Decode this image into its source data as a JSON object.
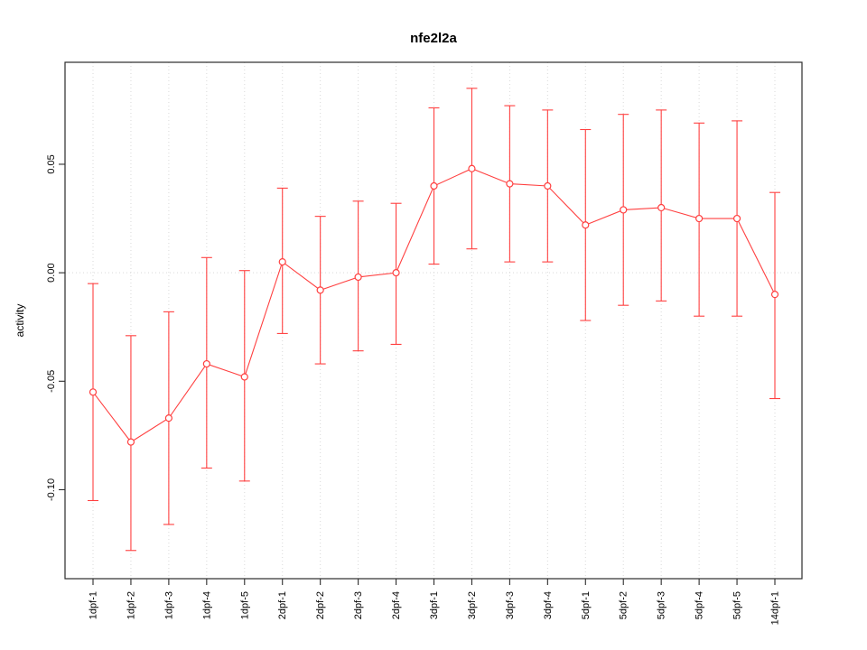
{
  "window": {
    "background": "#ffffff"
  },
  "chart_data": {
    "type": "line",
    "title": "nfe2l2a",
    "xlabel": "",
    "ylabel": "activity",
    "categories": [
      "1dpf-1",
      "1dpf-2",
      "1dpf-3",
      "1dpf-4",
      "1dpf-5",
      "2dpf-1",
      "2dpf-2",
      "2dpf-3",
      "2dpf-4",
      "3dpf-1",
      "3dpf-2",
      "3dpf-3",
      "3dpf-4",
      "5dpf-1",
      "5dpf-2",
      "5dpf-3",
      "5dpf-4",
      "5dpf-5",
      "14dpf-1"
    ],
    "series": [
      {
        "name": "activity",
        "values": [
          -0.055,
          -0.078,
          -0.067,
          -0.042,
          -0.048,
          0.005,
          -0.008,
          -0.002,
          0.0,
          0.04,
          0.048,
          0.041,
          0.04,
          0.022,
          0.029,
          0.03,
          0.025,
          0.025,
          -0.01
        ]
      }
    ],
    "error_upper": [
      -0.005,
      -0.029,
      -0.018,
      0.007,
      0.001,
      0.039,
      0.026,
      0.033,
      0.032,
      0.076,
      0.085,
      0.077,
      0.075,
      0.066,
      0.073,
      0.075,
      0.069,
      0.07,
      0.037
    ],
    "error_lower": [
      -0.105,
      -0.128,
      -0.116,
      -0.09,
      -0.096,
      -0.028,
      -0.042,
      -0.036,
      -0.033,
      0.004,
      0.011,
      0.005,
      0.005,
      -0.022,
      -0.015,
      -0.013,
      -0.02,
      -0.02,
      -0.058
    ],
    "yticks": [
      0.05,
      0.0,
      -0.05,
      -0.1
    ],
    "ytick_labels": [
      "0.05",
      "0.00",
      "-0.05",
      "-0.10"
    ],
    "ylim": [
      -0.141,
      0.097
    ],
    "grid": "dotted vertical line at each category; dotted horizontal line at y=0",
    "legend": "none",
    "colors": {
      "series": "#ff4040",
      "grid": "#d9d9d9",
      "axis": "#2b2b2b",
      "text": "#000000"
    }
  }
}
